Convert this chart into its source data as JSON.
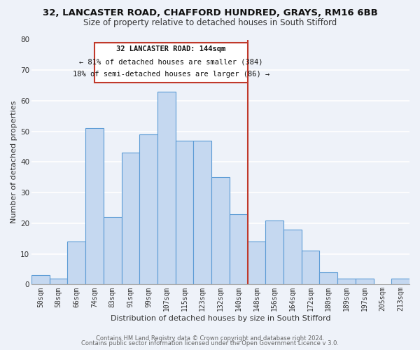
{
  "title_line1": "32, LANCASTER ROAD, CHAFFORD HUNDRED, GRAYS, RM16 6BB",
  "title_line2": "Size of property relative to detached houses in South Stifford",
  "xlabel": "Distribution of detached houses by size in South Stifford",
  "ylabel": "Number of detached properties",
  "bar_labels": [
    "50sqm",
    "58sqm",
    "66sqm",
    "74sqm",
    "83sqm",
    "91sqm",
    "99sqm",
    "107sqm",
    "115sqm",
    "123sqm",
    "132sqm",
    "140sqm",
    "148sqm",
    "156sqm",
    "164sqm",
    "172sqm",
    "180sqm",
    "189sqm",
    "197sqm",
    "205sqm",
    "213sqm"
  ],
  "bar_values": [
    3,
    2,
    14,
    51,
    22,
    43,
    49,
    63,
    47,
    47,
    35,
    23,
    14,
    21,
    18,
    11,
    4,
    2,
    2,
    0,
    2
  ],
  "bar_color": "#c5d8f0",
  "bar_edge_color": "#5b9bd5",
  "background_color": "#eef2f9",
  "grid_color": "#ffffff",
  "vline_color": "#c0392b",
  "annotation_title": "32 LANCASTER ROAD: 144sqm",
  "annotation_line1": "← 81% of detached houses are smaller (384)",
  "annotation_line2": "18% of semi-detached houses are larger (86) →",
  "annotation_box_color": "#c0392b",
  "ylim": [
    0,
    80
  ],
  "yticks": [
    0,
    10,
    20,
    30,
    40,
    50,
    60,
    70,
    80
  ],
  "footer_line1": "Contains HM Land Registry data © Crown copyright and database right 2024.",
  "footer_line2": "Contains public sector information licensed under the Open Government Licence v 3.0.",
  "title_fontsize": 9.5,
  "subtitle_fontsize": 8.5,
  "axis_label_fontsize": 8,
  "tick_fontsize": 7,
  "annotation_fontsize": 7.5,
  "footer_fontsize": 6
}
